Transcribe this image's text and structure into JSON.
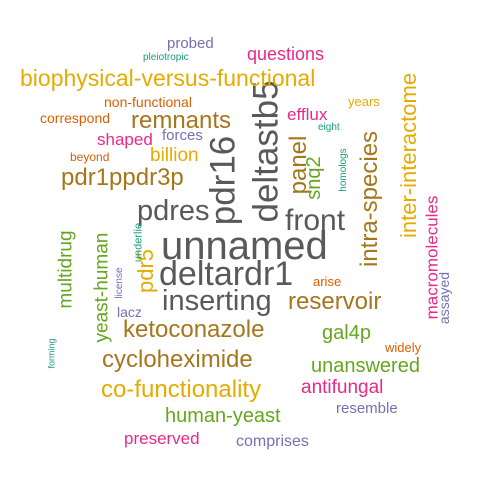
{
  "colors": {
    "gray": "#595959",
    "brown": "#a6761d",
    "gold": "#e6ab02",
    "magenta": "#e7298a",
    "green": "#66a61e",
    "orange": "#d95f02",
    "purple": "#7570b3",
    "teal": "#1b9e77"
  },
  "words": [
    {
      "text": "unnamed",
      "color": "gray",
      "vertical": false
    },
    {
      "text": "deltardr1",
      "color": "gray",
      "vertical": false
    },
    {
      "text": "inserting",
      "color": "gray",
      "vertical": false
    },
    {
      "text": "pdres",
      "color": "gray",
      "vertical": false
    },
    {
      "text": "pdr16",
      "color": "gray",
      "vertical": true
    },
    {
      "text": "deltastb5",
      "color": "gray",
      "vertical": true
    },
    {
      "text": "front",
      "color": "gray",
      "vertical": false
    },
    {
      "text": "cycloheximide",
      "color": "brown",
      "vertical": false
    },
    {
      "text": "ketoconazole",
      "color": "brown",
      "vertical": false
    },
    {
      "text": "pdr1ppdr3p",
      "color": "brown",
      "vertical": false
    },
    {
      "text": "reservoir",
      "color": "brown",
      "vertical": false
    },
    {
      "text": "panel",
      "color": "brown",
      "vertical": true
    },
    {
      "text": "intra-species",
      "color": "brown",
      "vertical": true
    },
    {
      "text": "remnants",
      "color": "brown",
      "vertical": false
    },
    {
      "text": "biophysical-versus-functional",
      "color": "gold",
      "vertical": false
    },
    {
      "text": "co-functionality",
      "color": "gold",
      "vertical": false
    },
    {
      "text": "inter-interactome",
      "color": "gold",
      "vertical": true
    },
    {
      "text": "pdr5",
      "color": "gold",
      "vertical": true
    },
    {
      "text": "billion",
      "color": "gold",
      "vertical": false
    },
    {
      "text": "years",
      "color": "gold",
      "vertical": false
    },
    {
      "text": "human-yeast",
      "color": "green",
      "vertical": false
    },
    {
      "text": "unanswered",
      "color": "green",
      "vertical": false
    },
    {
      "text": "yeast-human",
      "color": "green",
      "vertical": true
    },
    {
      "text": "multidrug",
      "color": "green",
      "vertical": true
    },
    {
      "text": "gal4p",
      "color": "green",
      "vertical": false
    },
    {
      "text": "snq2",
      "color": "green",
      "vertical": true
    },
    {
      "text": "antifungal",
      "color": "magenta",
      "vertical": false
    },
    {
      "text": "macromolecules",
      "color": "magenta",
      "vertical": true
    },
    {
      "text": "questions",
      "color": "magenta",
      "vertical": false
    },
    {
      "text": "shaped",
      "color": "magenta",
      "vertical": false
    },
    {
      "text": "preserved",
      "color": "magenta",
      "vertical": false
    },
    {
      "text": "efflux",
      "color": "magenta",
      "vertical": false
    },
    {
      "text": "comprises",
      "color": "purple",
      "vertical": false
    },
    {
      "text": "resemble",
      "color": "purple",
      "vertical": false
    },
    {
      "text": "probed",
      "color": "purple",
      "vertical": false
    },
    {
      "text": "forces",
      "color": "purple",
      "vertical": false
    },
    {
      "text": "lacz",
      "color": "purple",
      "vertical": false
    },
    {
      "text": "assayed",
      "color": "purple",
      "vertical": true
    },
    {
      "text": "non-functional",
      "color": "orange",
      "vertical": false
    },
    {
      "text": "correspond",
      "color": "orange",
      "vertical": false
    },
    {
      "text": "beyond",
      "color": "orange",
      "vertical": false
    },
    {
      "text": "arise",
      "color": "orange",
      "vertical": false
    },
    {
      "text": "widely",
      "color": "orange",
      "vertical": false
    },
    {
      "text": "pleiotropic",
      "color": "teal",
      "vertical": false
    },
    {
      "text": "eight",
      "color": "teal",
      "vertical": false
    },
    {
      "text": "homologs",
      "color": "teal",
      "vertical": true
    },
    {
      "text": "underlie",
      "color": "teal",
      "vertical": true
    },
    {
      "text": "license",
      "color": "purple",
      "vertical": true
    },
    {
      "text": "forming",
      "color": "teal",
      "vertical": true
    }
  ]
}
